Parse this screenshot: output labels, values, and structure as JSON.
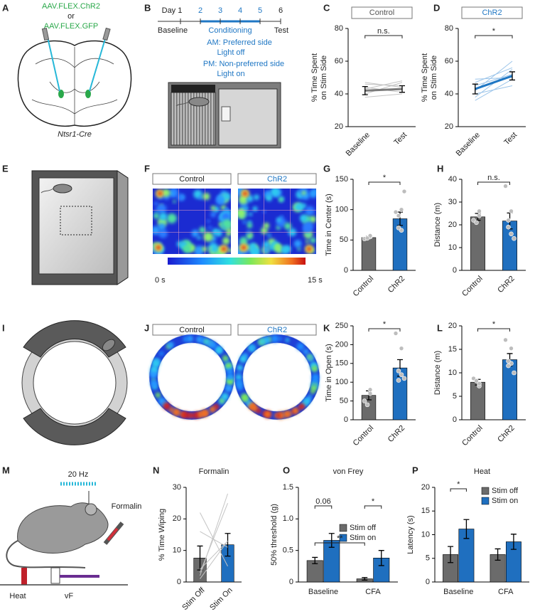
{
  "panel_labels": [
    "A",
    "B",
    "C",
    "D",
    "E",
    "F",
    "G",
    "H",
    "I",
    "J",
    "K",
    "L",
    "M",
    "N",
    "O",
    "P"
  ],
  "panel_a": {
    "virus_1": "AAV.FLEX.ChR2",
    "conjunction": "or",
    "virus_2": "AAV.FLEX.GFP",
    "mouse_line": "Ntsr1-Cre"
  },
  "panel_b": {
    "days": [
      "Day 1",
      "2",
      "3",
      "4",
      "5",
      "6"
    ],
    "phases": [
      "Baseline",
      "Conditioning",
      "Test"
    ],
    "schedule": [
      "AM: Preferred side",
      "Light off",
      "PM: Non-preferred side",
      "Light on"
    ]
  },
  "panel_f": {
    "groups": [
      "Control",
      "ChR2"
    ],
    "colorbar_min": "0 s",
    "colorbar_max": "15 s"
  },
  "panel_j": {
    "groups": [
      "Control",
      "ChR2"
    ]
  },
  "panel_m": {
    "stimulation": "20 Hz",
    "injection": "Formalin",
    "tests": [
      "Heat",
      "vF"
    ]
  },
  "chart_data": [
    {
      "type": "line",
      "title": "Control",
      "title_boxed": true,
      "title_color": "#555555",
      "ylabel": [
        "% Time Spent",
        "on Stim Side"
      ],
      "categories": [
        "Baseline",
        "Test"
      ],
      "values": [
        42,
        43
      ],
      "errors": [
        2.5,
        2
      ],
      "color": "#7a7a7a",
      "individuals": [
        [
          38,
          40
        ],
        [
          44,
          41
        ],
        [
          46,
          45
        ],
        [
          40,
          47
        ],
        [
          43,
          48
        ],
        [
          47,
          44
        ]
      ],
      "individual_color": "#c4c4c4",
      "ylim": [
        20,
        80
      ],
      "yticks": [
        20,
        40,
        60,
        80
      ],
      "annotations": [
        "n.s."
      ]
    },
    {
      "type": "line",
      "title": "ChR2",
      "title_boxed": true,
      "title_color": "#1f77c4",
      "ylabel": [
        "% Time Spent",
        "on Stim Side"
      ],
      "categories": [
        "Baseline",
        "Test"
      ],
      "values": [
        43,
        51
      ],
      "errors": [
        3,
        2.5
      ],
      "color": "#1f77c4",
      "individuals": [
        [
          38,
          55
        ],
        [
          45,
          52
        ],
        [
          49,
          50
        ],
        [
          40,
          45
        ],
        [
          42,
          60
        ],
        [
          47,
          56
        ],
        [
          36,
          49
        ]
      ],
      "individual_color": "#9cc5ea",
      "ylim": [
        20,
        80
      ],
      "yticks": [
        20,
        40,
        60,
        80
      ],
      "annotations": [
        "*"
      ]
    },
    {
      "type": "bar",
      "ylabel": [
        "Time in Center (s)"
      ],
      "categories": [
        "Control",
        "ChR2"
      ],
      "values": [
        54,
        85
      ],
      "errors": [
        2,
        11
      ],
      "colors": [
        "#6b6b6b",
        "#1f6fbf"
      ],
      "points": [
        [
          52,
          55,
          57,
          53
        ],
        [
          96,
          100,
          66,
          70,
          90,
          130
        ]
      ],
      "ylim": [
        0,
        150
      ],
      "yticks": [
        0,
        50,
        100,
        150
      ],
      "annotations": [
        "*"
      ]
    },
    {
      "type": "bar",
      "ylabel": [
        "Distance (m)"
      ],
      "categories": [
        "Control",
        "ChR2"
      ],
      "values": [
        23.5,
        21.7
      ],
      "errors": [
        1.5,
        3.5
      ],
      "colors": [
        "#6b6b6b",
        "#1f6fbf"
      ],
      "points": [
        [
          22,
          26,
          24,
          21
        ],
        [
          37,
          26,
          16,
          22,
          19,
          14
        ]
      ],
      "ylim": [
        0,
        40
      ],
      "yticks": [
        0,
        10,
        20,
        30,
        40
      ],
      "annotations": [
        "n.s."
      ]
    },
    {
      "type": "bar",
      "ylabel": [
        "Time in Open (s)"
      ],
      "categories": [
        "Control",
        "ChR2"
      ],
      "values": [
        65,
        138
      ],
      "errors": [
        12,
        22
      ],
      "colors": [
        "#6b6b6b",
        "#1f6fbf"
      ],
      "points": [
        [
          50,
          70,
          80,
          40
        ],
        [
          230,
          190,
          120,
          105,
          130,
          110
        ]
      ],
      "ylim": [
        0,
        250
      ],
      "yticks": [
        0,
        50,
        100,
        150,
        200,
        250
      ],
      "annotations": [
        "*"
      ]
    },
    {
      "type": "bar",
      "ylabel": [
        "Distance (m)"
      ],
      "categories": [
        "Control",
        "ChR2"
      ],
      "values": [
        8,
        12.8
      ],
      "errors": [
        0.6,
        1.3
      ],
      "colors": [
        "#6b6b6b",
        "#1f6fbf"
      ],
      "points": [
        [
          8.8,
          7.2,
          7.7,
          8.3
        ],
        [
          17,
          15.2,
          12,
          11.5,
          12.5,
          10
        ]
      ],
      "ylim": [
        0,
        20
      ],
      "yticks": [
        0,
        5,
        10,
        15,
        20
      ],
      "annotations": [
        "*"
      ]
    },
    {
      "type": "bar",
      "title": "Formalin",
      "ylabel": [
        "% Time Wiping"
      ],
      "categories": [
        "Stim Off",
        "Stim On"
      ],
      "values": [
        7.6,
        11.8
      ],
      "errors": [
        3.8,
        3.6
      ],
      "colors": [
        "#6b6b6b",
        "#1f6fbf"
      ],
      "individuals": [
        [
          2,
          28
        ],
        [
          22,
          5
        ],
        [
          16,
          11
        ],
        [
          4,
          13
        ],
        [
          3,
          25
        ],
        [
          1,
          13
        ]
      ],
      "individual_color": "#c4c4c4",
      "ylim": [
        0,
        30
      ],
      "yticks": [
        0,
        10,
        20,
        30
      ]
    },
    {
      "type": "bar",
      "title": "von Frey",
      "ylabel": [
        "50% threshold (g)"
      ],
      "categories": [
        "Baseline",
        "CFA"
      ],
      "series": [
        {
          "name": "Stim off",
          "color": "#6b6b6b",
          "values": [
            0.34,
            0.05
          ],
          "errors": [
            0.05,
            0.02
          ]
        },
        {
          "name": "Stim on",
          "color": "#1f6fbf",
          "values": [
            0.66,
            0.38
          ],
          "errors": [
            0.11,
            0.12
          ]
        }
      ],
      "ylim": [
        0,
        1.5
      ],
      "yticks": [
        0,
        0.5,
        {
          "value": 1,
          "label": "1.0"
        },
        1.5
      ],
      "annotations": [
        "0.06",
        "**",
        "*"
      ],
      "legend": "upper right"
    },
    {
      "type": "bar",
      "title": "Heat",
      "ylabel": [
        "Latency (s)"
      ],
      "categories": [
        "Baseline",
        "CFA"
      ],
      "series": [
        {
          "name": "Stim off",
          "color": "#6b6b6b",
          "values": [
            5.8,
            5.8
          ],
          "errors": [
            1.7,
            1.2
          ]
        },
        {
          "name": "Stim on",
          "color": "#1f6fbf",
          "values": [
            11.2,
            8.5
          ],
          "errors": [
            2,
            1.6
          ]
        }
      ],
      "ylim": [
        0,
        20
      ],
      "yticks": [
        0,
        5,
        10,
        15,
        20
      ],
      "annotations": [
        "*"
      ],
      "legend": "upper right"
    }
  ]
}
